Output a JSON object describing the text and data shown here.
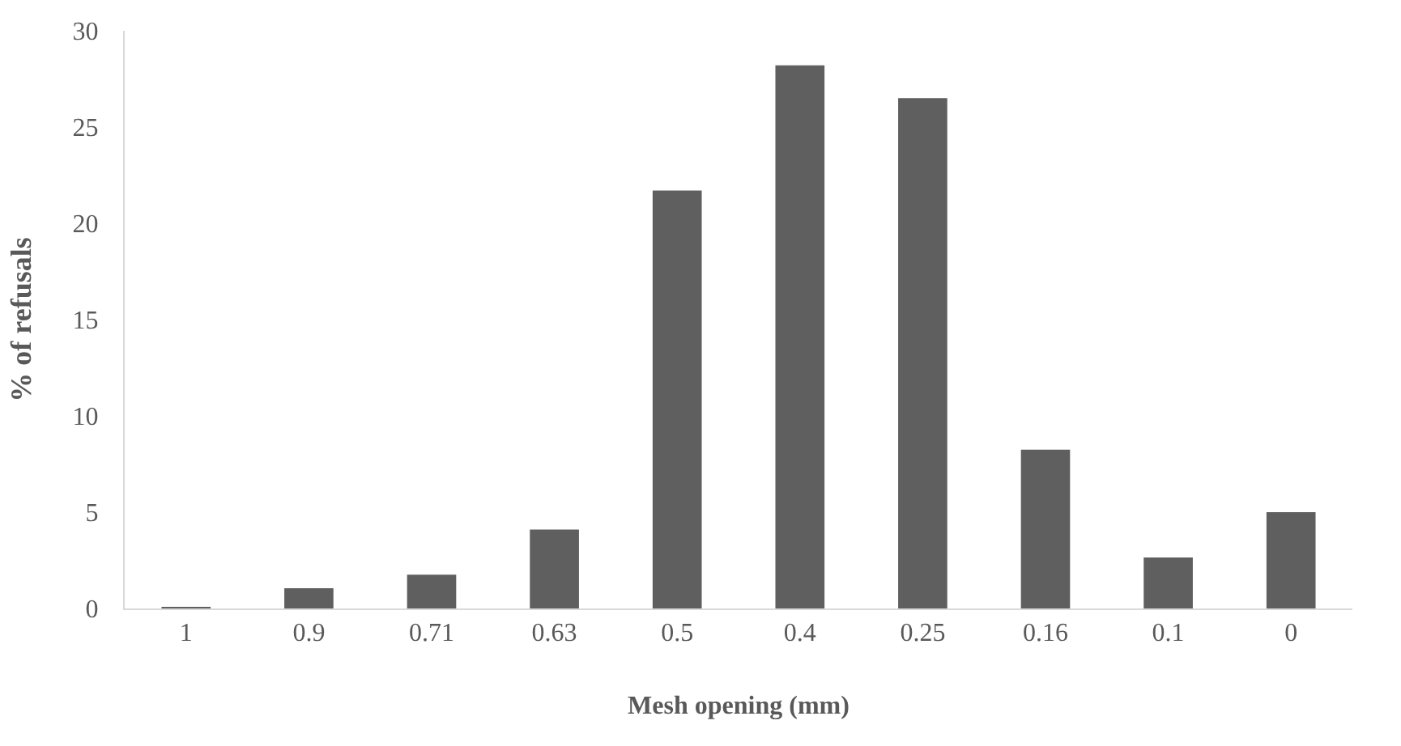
{
  "chart_data": {
    "type": "bar",
    "xlabel": "Mesh opening (mm)",
    "ylabel": "% of refusals",
    "categories": [
      "1",
      "0.9",
      "0.71",
      "0.63",
      "0.5",
      "0.4",
      "0.25",
      "0.16",
      "0.1",
      "0"
    ],
    "values": [
      0.05,
      1.05,
      1.75,
      4.1,
      21.7,
      28.2,
      26.5,
      8.25,
      2.65,
      5.0
    ],
    "color": "#5f5f5f",
    "ylim": [
      0,
      30
    ],
    "yticks": [
      0,
      5,
      10,
      15,
      20,
      25,
      30
    ],
    "grid": false
  }
}
